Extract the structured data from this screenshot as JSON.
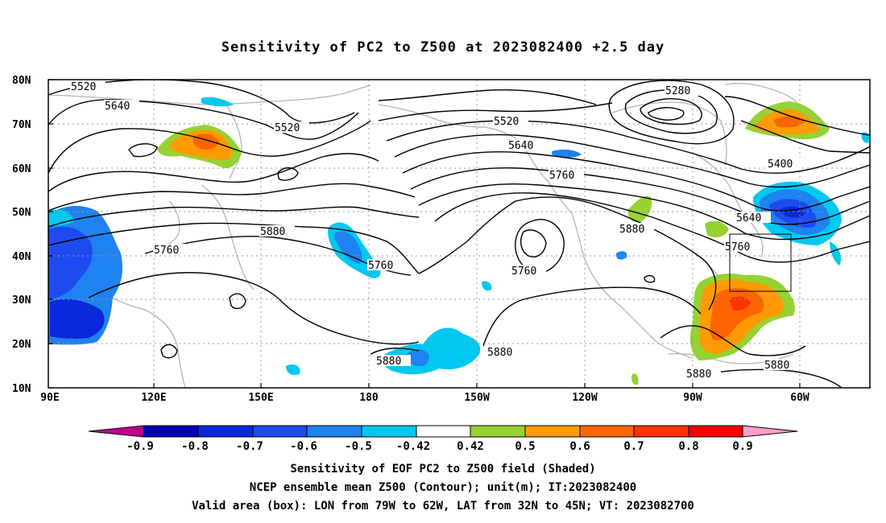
{
  "title": "Sensitivity of PC2 to Z500 at 2023082400 +2.5 day",
  "lat_labels": [
    "80N",
    "70N",
    "60N",
    "50N",
    "40N",
    "30N",
    "20N",
    "10N"
  ],
  "lon_labels": [
    "90E",
    "120E",
    "150E",
    "180",
    "150W",
    "120W",
    "90W",
    "60W"
  ],
  "contour_labels": {
    "c5520a": "5520",
    "c5640a": "5640",
    "c5520b": "5520",
    "c5280": "5280",
    "c5520c": "5520",
    "c5640b": "5640",
    "c5760a": "5760",
    "c5400": "5400",
    "c5640c": "5640",
    "c5760b": "5760",
    "c5880a": "5880",
    "c5760c": "5760",
    "c5760d": "5760",
    "c5880b": "5880",
    "c5880c": "5880",
    "c5880d": "5880",
    "c5880e": "5880",
    "c5880f": "5880"
  },
  "colorbar": {
    "ticks": [
      "-0.9",
      "-0.8",
      "-0.7",
      "-0.6",
      "-0.5",
      "-0.42",
      "0.42",
      "0.5",
      "0.6",
      "0.7",
      "0.8",
      "0.9"
    ],
    "colors": [
      "#c0008f",
      "#0000b4",
      "#0a28dc",
      "#1e4bf0",
      "#1e82f0",
      "#00c8f0",
      "#ffffff",
      "#96d232",
      "#ff9b00",
      "#ff6400",
      "#ff3200",
      "#ff0000",
      "#ff9ecb"
    ]
  },
  "captions": {
    "line1": "Sensitivity of EOF PC2 to Z500 field (Shaded)",
    "line2": "NCEP ensemble mean Z500 (Contour); unit(m); IT:2023082400",
    "line3": "Valid area (box): LON from 79W to 62W, LAT from 32N to 45N; VT: 2023082700"
  }
}
